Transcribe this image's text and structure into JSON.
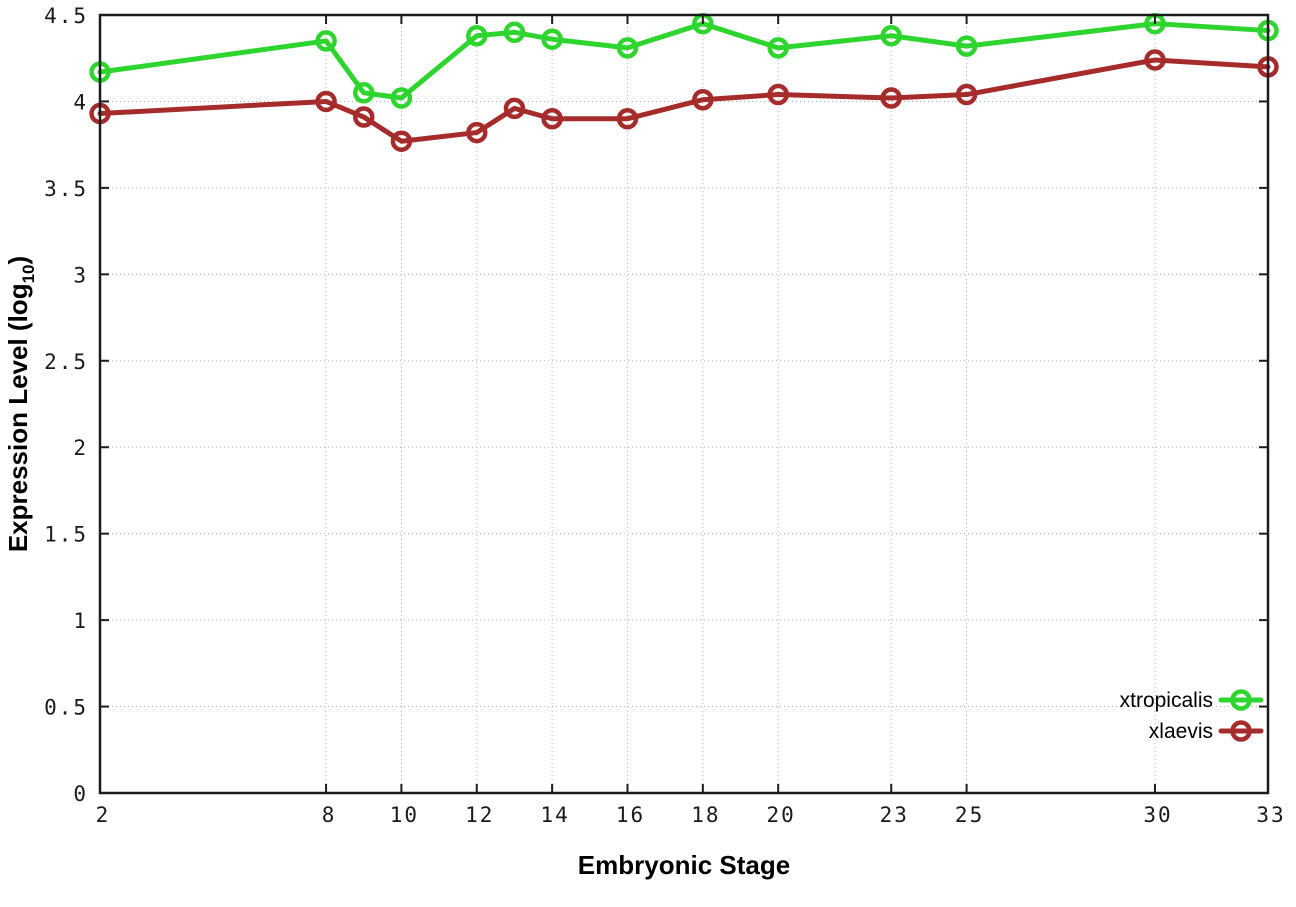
{
  "figure": {
    "background": "#ffffff",
    "xlabel": "Embryonic Stage",
    "ylabel_prefix": "Expression Level (log",
    "ylabel_sub": "10",
    "ylabel_suffix": ")"
  },
  "chart_data": {
    "type": "line",
    "title": "",
    "xlabel": "Embryonic Stage",
    "ylabel": "Expression Level (log10)",
    "x": [
      2,
      8,
      9,
      10,
      12,
      13,
      14,
      16,
      18,
      20,
      23,
      25,
      30,
      33
    ],
    "series": [
      {
        "name": "xtropicalis",
        "color": "#2ed52e",
        "marker": "open-circle",
        "values": [
          4.17,
          4.35,
          4.05,
          4.02,
          4.38,
          4.4,
          4.36,
          4.31,
          4.45,
          4.31,
          4.38,
          4.32,
          4.45,
          4.41
        ]
      },
      {
        "name": "xlaevis",
        "color": "#a62b2b",
        "marker": "open-circle",
        "values": [
          3.93,
          4.0,
          3.91,
          3.77,
          3.82,
          3.96,
          3.9,
          3.9,
          4.01,
          4.04,
          4.02,
          4.04,
          4.24,
          4.2
        ]
      }
    ],
    "xlim": [
      2,
      33
    ],
    "ylim": [
      0,
      4.5
    ],
    "xticks": [
      2,
      8,
      10,
      12,
      14,
      16,
      18,
      20,
      23,
      25,
      30,
      33
    ],
    "yticks": [
      0,
      0.5,
      1,
      1.5,
      2,
      2.5,
      3,
      3.5,
      4,
      4.5
    ],
    "ytick_labels": [
      "0",
      "0.5",
      "1",
      "1.5",
      "2",
      "2.5",
      "3",
      "3.5",
      "4",
      "4.5"
    ],
    "grid": true,
    "grid_color": "#b4b4b4",
    "axis_color": "#1c1c1c",
    "legend_position": "inside-bottom-right",
    "legend": [
      "xtropicalis",
      "xlaevis"
    ]
  }
}
